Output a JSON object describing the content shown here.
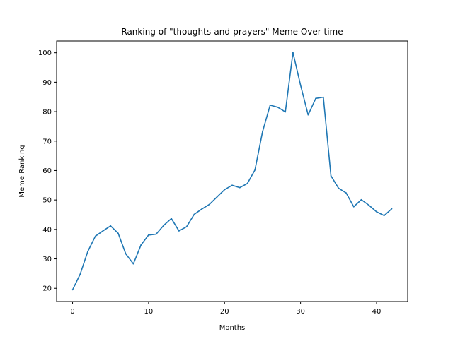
{
  "chart_data": {
    "type": "line",
    "title": "Ranking of \"thoughts-and-prayers\" Meme Over time",
    "xlabel": "Months",
    "ylabel": "Meme Ranking",
    "xlim": [
      -2.1,
      44.1
    ],
    "ylim": [
      15.5,
      104
    ],
    "xticks": [
      0,
      10,
      20,
      30,
      40
    ],
    "yticks": [
      20,
      30,
      40,
      50,
      60,
      70,
      80,
      90,
      100
    ],
    "grid": false,
    "legend": "none",
    "line_color": "#1f77b4",
    "series": [
      {
        "x": [
          0,
          1,
          2,
          3,
          4,
          5,
          6,
          7,
          8,
          9,
          10,
          11,
          12,
          13,
          14,
          15,
          16,
          17,
          18,
          19,
          20,
          21,
          22,
          23,
          24,
          25,
          26,
          27,
          28,
          29,
          30,
          31,
          32,
          33,
          34,
          35,
          36,
          37,
          38,
          39,
          40,
          41,
          42
        ],
        "values": [
          19.5,
          24.8,
          32.5,
          37.7,
          39.5,
          41.2,
          38.7,
          31.7,
          28.3,
          34.7,
          38.1,
          38.4,
          41.4,
          43.7,
          39.5,
          40.9,
          45.1,
          46.9,
          48.5,
          51.0,
          53.5,
          55.0,
          54.2,
          55.6,
          60.2,
          73.2,
          82.2,
          81.5,
          79.9,
          100.1,
          89.0,
          78.9,
          84.5,
          84.9,
          58.2,
          54.0,
          52.4,
          47.7,
          50.1,
          48.2,
          46.0,
          44.7,
          47.0
        ]
      }
    ]
  }
}
